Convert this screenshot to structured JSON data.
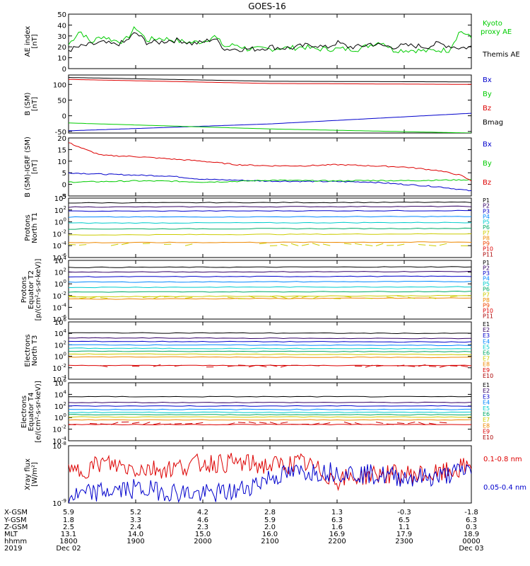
{
  "title": "GOES-16",
  "colors": {
    "black": "#000000",
    "blue": "#0000cc",
    "green": "#00cc00",
    "red": "#dd0000",
    "cyan": "#00cccc",
    "teal": "#00aa88",
    "yellow": "#cccc00",
    "orange": "#ee8800"
  },
  "x_ticks": [
    "1800",
    "1900",
    "2000",
    "2100",
    "2200",
    "2300",
    "0000"
  ],
  "ephemeris": {
    "labels": [
      "X-GSM",
      "Y-GSM",
      "Z-GSM",
      "MLT",
      "hhmm",
      "2019"
    ],
    "rows": [
      [
        "5.9",
        "5.2",
        "4.2",
        "2.8",
        "1.3",
        "-0.3",
        "-1.8"
      ],
      [
        "1.8",
        "3.3",
        "4.6",
        "5.9",
        "6.3",
        "6.5",
        "6.3"
      ],
      [
        "2.5",
        "2.4",
        "2.3",
        "2.0",
        "1.6",
        "1.1",
        "0.3"
      ],
      [
        "13.1",
        "14.0",
        "15.0",
        "16.0",
        "16.9",
        "17.9",
        "18.9"
      ],
      [
        "1800",
        "1900",
        "2000",
        "2100",
        "2200",
        "2300",
        "0000"
      ]
    ],
    "dates": {
      "start": "Dec 02",
      "end": "Dec 03"
    }
  },
  "chart_data": [
    {
      "type": "line",
      "ylabel": "AE index [nT]",
      "ylim": [
        0,
        50
      ],
      "yticks": [
        "0",
        "10",
        "20",
        "30",
        "40",
        "50"
      ],
      "legend": [
        {
          "name": "Kyoto proxy AE",
          "color": "#00cc00"
        },
        {
          "name": "Themis AE",
          "color": "#000000"
        }
      ],
      "series": [
        {
          "name": "Kyoto proxy AE",
          "x": [
            1800,
            1810,
            1820,
            1830,
            1840,
            1850,
            1900,
            1910,
            1920,
            1930,
            1940,
            1950,
            2000,
            2010,
            2020,
            2030,
            2040,
            2050,
            2100,
            2110,
            2120,
            2130,
            2140,
            2150,
            2200,
            2210,
            2220,
            2230,
            2240,
            2250,
            2300,
            2310,
            2320,
            2330,
            2340,
            2350,
            2400
          ],
          "values": [
            22,
            35,
            24,
            30,
            26,
            25,
            38,
            26,
            28,
            27,
            25,
            24,
            25,
            30,
            20,
            22,
            18,
            18,
            18,
            19,
            19,
            20,
            18,
            18,
            18,
            18,
            18,
            22,
            25,
            17,
            17,
            17,
            16,
            17,
            17,
            35,
            28
          ]
        },
        {
          "name": "Themis AE",
          "x": [
            1800,
            1810,
            1820,
            1830,
            1840,
            1850,
            1900,
            1910,
            1920,
            1930,
            1940,
            1950,
            2000,
            2010,
            2020,
            2030,
            2040,
            2050,
            2100,
            2110,
            2120,
            2130,
            2140,
            2150,
            2200,
            2210,
            2220,
            2230,
            2240,
            2250,
            2300,
            2310,
            2320,
            2330,
            2340,
            2350,
            2400
          ],
          "values": [
            17,
            20,
            22,
            24,
            22,
            24,
            33,
            24,
            24,
            26,
            26,
            23,
            24,
            28,
            18,
            18,
            18,
            18,
            20,
            19,
            19,
            21,
            22,
            19,
            24,
            20,
            20,
            23,
            21,
            20,
            21,
            21,
            20,
            23,
            21,
            19,
            20
          ]
        }
      ]
    },
    {
      "type": "line",
      "ylabel": "B (SM) [nT]",
      "ylim": [
        -55,
        130
      ],
      "yticks": [
        "-50",
        "0",
        "50",
        "100"
      ],
      "legend": [
        {
          "name": "Bx",
          "color": "#0000cc"
        },
        {
          "name": "By",
          "color": "#00cc00"
        },
        {
          "name": "Bz",
          "color": "#dd0000"
        },
        {
          "name": "Bmag",
          "color": "#000000"
        }
      ],
      "series": [
        {
          "name": "Bx",
          "x": [
            1800,
            2100,
            2400
          ],
          "values": [
            -48,
            -26,
            8
          ]
        },
        {
          "name": "By",
          "x": [
            1800,
            2100,
            2400
          ],
          "values": [
            -23,
            -42,
            -55
          ]
        },
        {
          "name": "Bz",
          "x": [
            1800,
            2100,
            2400
          ],
          "values": [
            116,
            103,
            100
          ]
        },
        {
          "name": "Bmag",
          "x": [
            1800,
            2100,
            2400
          ],
          "values": [
            122,
            110,
            108
          ]
        }
      ]
    },
    {
      "type": "line",
      "ylabel": "B (SM)-IGRF (SM) [nT]",
      "ylim": [
        -5,
        20
      ],
      "yticks": [
        "-5",
        "0",
        "5",
        "10",
        "15",
        "20"
      ],
      "legend": [
        {
          "name": "Bx",
          "color": "#0000cc"
        },
        {
          "name": "By",
          "color": "#00cc00"
        },
        {
          "name": "Bz",
          "color": "#dd0000"
        }
      ],
      "series": [
        {
          "name": "Bx",
          "x": [
            1800,
            1830,
            1900,
            1930,
            2000,
            2030,
            2100,
            2130,
            2200,
            2230,
            2300,
            2330,
            2400
          ],
          "values": [
            5,
            4.4,
            4,
            3.6,
            2.2,
            1.8,
            1.4,
            1.3,
            1.2,
            1.0,
            0,
            -1.0,
            -2.8
          ]
        },
        {
          "name": "By",
          "x": [
            1800,
            1830,
            1900,
            1930,
            2000,
            2030,
            2100,
            2130,
            2200,
            2230,
            2300,
            2330,
            2400
          ],
          "values": [
            1,
            1.2,
            1.5,
            1.4,
            1,
            1.3,
            1.8,
            1.6,
            1.5,
            1.7,
            1.6,
            1.8,
            2
          ]
        },
        {
          "name": "Bz",
          "x": [
            1800,
            1815,
            1830,
            1900,
            1930,
            2000,
            2030,
            2100,
            2130,
            2200,
            2230,
            2300,
            2330,
            2350,
            2400
          ],
          "values": [
            18,
            15,
            12.5,
            12,
            11,
            10,
            8.5,
            8,
            8,
            8.5,
            8,
            7.5,
            6,
            4,
            1.5
          ]
        }
      ]
    },
    {
      "type": "line",
      "ylabel": "Protons North T1",
      "yscale": "log",
      "ylim": [
        -6,
        4
      ],
      "yticks": [
        "10^4",
        "10^2",
        "10^0",
        "10^-2",
        "10^-4",
        "10^-6"
      ],
      "legend": [
        {
          "name": "P1",
          "color": "#000000"
        },
        {
          "name": "P2",
          "color": "#330066"
        },
        {
          "name": "P3",
          "color": "#0000cc"
        },
        {
          "name": "P4",
          "color": "#0088ff"
        },
        {
          "name": "P5",
          "color": "#00cccc"
        },
        {
          "name": "P6",
          "color": "#00aa66"
        },
        {
          "name": "P7",
          "color": "#cccc00"
        },
        {
          "name": "P8",
          "color": "#ee8800"
        },
        {
          "name": "P9",
          "color": "#ee4400"
        },
        {
          "name": "P10",
          "color": "#dd0000"
        },
        {
          "name": "P11",
          "color": "#aa0000"
        }
      ],
      "series": [
        {
          "name": "P1",
          "values": [
            3.2,
            3.3
          ]
        },
        {
          "name": "P2",
          "values": [
            2.5,
            2.6
          ]
        },
        {
          "name": "P3",
          "values": [
            1.8,
            1.9
          ]
        },
        {
          "name": "P4",
          "values": [
            0.8,
            0.9
          ]
        },
        {
          "name": "P5",
          "values": [
            -0.2,
            -0.1
          ]
        },
        {
          "name": "P6",
          "values": [
            -1.2,
            -1.1
          ]
        },
        {
          "name": "P7",
          "values": [
            -2.2,
            -2.0
          ]
        },
        {
          "name": "P8",
          "values": [
            -3.5,
            -3.4
          ]
        }
      ]
    },
    {
      "type": "line",
      "ylabel": "Protons Equator T2 [p/(cm²-s-sr-keV)]",
      "yscale": "log",
      "ylim": [
        -6,
        4
      ],
      "yticks": [
        "10^4",
        "10^2",
        "10^0",
        "10^-2",
        "10^-4",
        "10^-6"
      ],
      "legend": [
        {
          "name": "P1",
          "color": "#000000"
        },
        {
          "name": "P2",
          "color": "#330066"
        },
        {
          "name": "P3",
          "color": "#0000cc"
        },
        {
          "name": "P4",
          "color": "#0088ff"
        },
        {
          "name": "P5",
          "color": "#00cccc"
        },
        {
          "name": "P6",
          "color": "#00aa66"
        },
        {
          "name": "P7",
          "color": "#cccc00"
        },
        {
          "name": "P8",
          "color": "#ee8800"
        },
        {
          "name": "P9",
          "color": "#ee4400"
        },
        {
          "name": "P10",
          "color": "#dd0000"
        },
        {
          "name": "P11",
          "color": "#aa0000"
        }
      ],
      "series": [
        {
          "name": "P1",
          "values": [
            2.8,
            2.9
          ]
        },
        {
          "name": "P2",
          "values": [
            2.0,
            2.1
          ]
        },
        {
          "name": "P3",
          "values": [
            1.2,
            1.3
          ]
        },
        {
          "name": "P4",
          "values": [
            0.3,
            0.4
          ]
        },
        {
          "name": "P5",
          "values": [
            -0.6,
            -0.5
          ]
        },
        {
          "name": "P6",
          "values": [
            -1.4,
            -1.3
          ]
        },
        {
          "name": "P7",
          "values": [
            -2.2,
            -2.0
          ]
        },
        {
          "name": "P8",
          "values": [
            -2.6,
            -2.4
          ]
        }
      ]
    },
    {
      "type": "line",
      "ylabel": "Electrons North T3",
      "yscale": "log",
      "ylim": [
        -4,
        6
      ],
      "yticks": [
        "10^6",
        "10^4",
        "10^2",
        "10^0",
        "10^-2",
        "10^-4"
      ],
      "legend": [
        {
          "name": "E1",
          "color": "#000000"
        },
        {
          "name": "E2",
          "color": "#330066"
        },
        {
          "name": "E3",
          "color": "#0000cc"
        },
        {
          "name": "E4",
          "color": "#0088ff"
        },
        {
          "name": "E5",
          "color": "#00cccc"
        },
        {
          "name": "E6",
          "color": "#00aa66"
        },
        {
          "name": "E7",
          "color": "#cccc00"
        },
        {
          "name": "E8",
          "color": "#ee8800"
        },
        {
          "name": "E9",
          "color": "#dd0000"
        },
        {
          "name": "E10",
          "color": "#aa0000"
        }
      ],
      "series": [
        {
          "name": "E1",
          "values": [
            4.1,
            4.0
          ]
        },
        {
          "name": "E2",
          "values": [
            3.2,
            3.1
          ]
        },
        {
          "name": "E3",
          "values": [
            2.6,
            2.5
          ]
        },
        {
          "name": "E4",
          "values": [
            2.0,
            1.9
          ]
        },
        {
          "name": "E5",
          "values": [
            1.4,
            1.3
          ]
        },
        {
          "name": "E6",
          "values": [
            0.9,
            0.8
          ]
        },
        {
          "name": "E7",
          "values": [
            0.4,
            0.3
          ]
        },
        {
          "name": "E8",
          "values": [
            -0.1,
            -0.2
          ]
        },
        {
          "name": "E9",
          "values": [
            -1.6,
            -1.6
          ]
        }
      ]
    },
    {
      "type": "line",
      "ylabel": "Electrons Equator T4 [e/(cm²-s-sr-keV)]",
      "yscale": "log",
      "ylim": [
        -4,
        6
      ],
      "yticks": [
        "10^6",
        "10^4",
        "10^2",
        "10^0",
        "10^-2",
        "10^-4"
      ],
      "legend": [
        {
          "name": "E1",
          "color": "#000000"
        },
        {
          "name": "E2",
          "color": "#330066"
        },
        {
          "name": "E3",
          "color": "#0000cc"
        },
        {
          "name": "E4",
          "color": "#0088ff"
        },
        {
          "name": "E5",
          "color": "#00cccc"
        },
        {
          "name": "E6",
          "color": "#00aa66"
        },
        {
          "name": "E7",
          "color": "#cccc00"
        },
        {
          "name": "E8",
          "color": "#ee8800"
        },
        {
          "name": "E9",
          "color": "#dd0000"
        },
        {
          "name": "E10",
          "color": "#aa0000"
        }
      ],
      "series": [
        {
          "name": "E1",
          "values": [
            3.6,
            3.6
          ]
        },
        {
          "name": "E2",
          "values": [
            2.6,
            2.6
          ]
        },
        {
          "name": "E3",
          "values": [
            2.0,
            2.0
          ]
        },
        {
          "name": "E4",
          "values": [
            1.4,
            1.4
          ]
        },
        {
          "name": "E5",
          "values": [
            0.9,
            0.9
          ]
        },
        {
          "name": "E6",
          "values": [
            0.5,
            0.5
          ]
        },
        {
          "name": "E7",
          "values": [
            0.1,
            0.1
          ]
        },
        {
          "name": "E8",
          "values": [
            -0.4,
            -0.4
          ]
        },
        {
          "name": "E9",
          "values": [
            -1.2,
            -1.2
          ]
        }
      ]
    },
    {
      "type": "line",
      "ylabel": "Xray flux [W/m²]",
      "yscale": "log",
      "ylim": [
        -9,
        -8
      ],
      "yticks": [
        "10^-8",
        "10^-9"
      ],
      "legend": [
        {
          "name": "0.1-0.8 nm",
          "color": "#dd0000"
        },
        {
          "name": "0.05-0.4 nm",
          "color": "#0000cc"
        }
      ],
      "series": [
        {
          "name": "0.1-0.8 nm",
          "x": [
            1800,
            1830,
            1900,
            1930,
            2000,
            2030,
            2100,
            2130,
            2200,
            2230,
            2300,
            2330,
            2400
          ],
          "values": [
            -8.5,
            -8.3,
            -8.4,
            -8.4,
            -8.3,
            -8.3,
            -8.35,
            -8.3,
            -8.6,
            -8.5,
            -8.5,
            -8.5,
            -8.35
          ]
        },
        {
          "name": "0.05-0.4 nm",
          "x": [
            1800,
            1830,
            1900,
            1930,
            2000,
            2030,
            2100,
            2130,
            2200,
            2230,
            2300,
            2330,
            2400
          ],
          "values": [
            -8.9,
            -8.8,
            -8.75,
            -8.8,
            -8.85,
            -8.8,
            -8.55,
            -8.45,
            -8.45,
            -8.5,
            -8.55,
            -8.55,
            -8.4
          ]
        }
      ]
    }
  ]
}
